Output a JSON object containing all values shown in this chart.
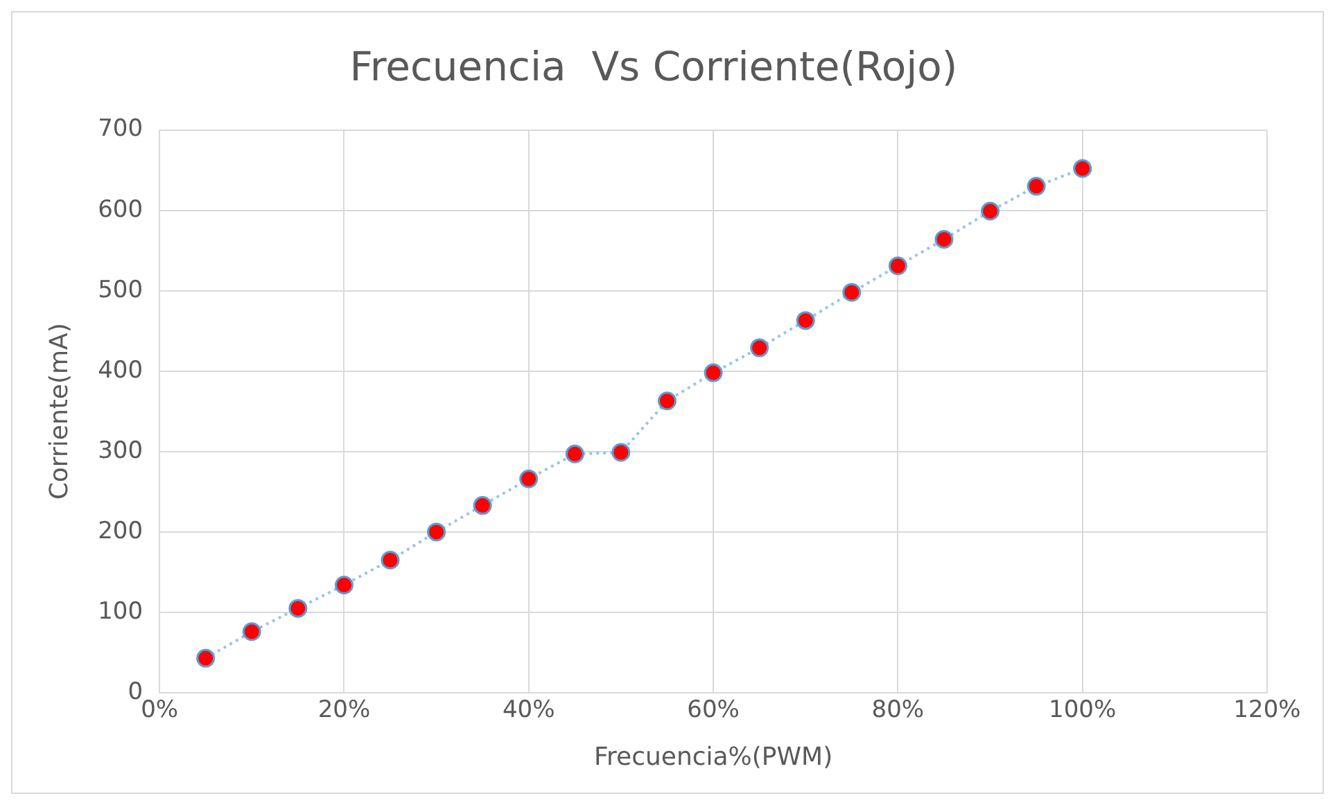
{
  "chart_data": {
    "type": "line",
    "title": "Frecuencia  Vs Corriente(Rojo)",
    "xlabel": "Frecuencia%(PWM)",
    "ylabel": "Corriente(mA)",
    "x": [
      5,
      10,
      15,
      20,
      25,
      30,
      35,
      40,
      45,
      50,
      55,
      60,
      65,
      70,
      75,
      80,
      85,
      90,
      95,
      100
    ],
    "series": [
      {
        "color": "#9dc3e6",
        "colors": [
          "#ff0000",
          "#ff0000",
          "#ff0000",
          "#ff0000",
          "#ff0000",
          "#ff0000",
          "#ff0000",
          "#ff0000",
          "#ff0000",
          "#ff0000",
          "#ff0000",
          "#ff0000",
          "#ff0000",
          "#ff0000",
          "#ff0000",
          "#ff0000",
          "#ff0000",
          "#ff0000",
          "#ff0000",
          "#ff0000"
        ],
        "values": [
          43,
          76,
          105,
          134,
          165,
          200,
          233,
          266,
          297,
          299,
          363,
          398,
          429,
          463,
          498,
          531,
          564,
          599,
          630,
          652
        ]
      }
    ],
    "xlim": [
      0,
      120
    ],
    "xticks": [
      {
        "value": 0,
        "label": "0%"
      },
      {
        "value": 20,
        "label": "20%"
      },
      {
        "value": 40,
        "label": "40%"
      },
      {
        "value": 60,
        "label": "60%"
      },
      {
        "value": 80,
        "label": "80%"
      },
      {
        "value": 100,
        "label": "100%"
      },
      {
        "value": 120,
        "label": "120%"
      }
    ],
    "ylim": [
      0,
      700
    ],
    "yticks": [
      0,
      100,
      200,
      300,
      400,
      500,
      600,
      700
    ],
    "grid": true,
    "marker": "circle",
    "line_style": "dotted"
  }
}
